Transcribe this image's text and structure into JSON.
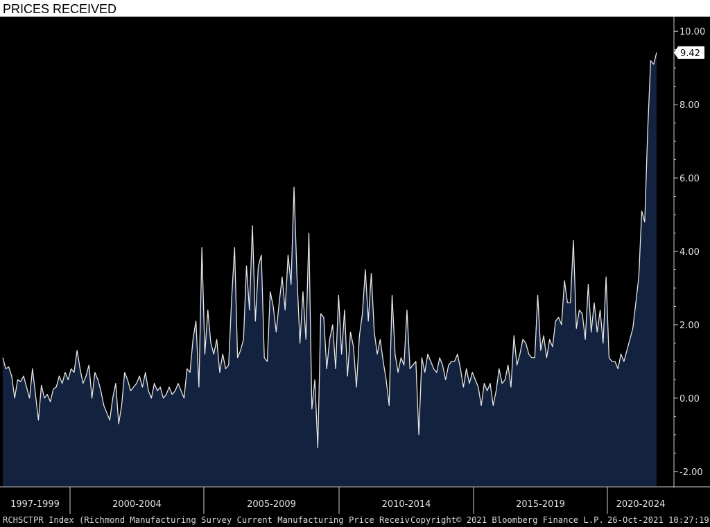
{
  "chart_data": {
    "type": "area",
    "title": "PRICES RECEIVED",
    "last_value_label": "9.42",
    "y_ticks": [
      "10.00",
      "8.00",
      "6.00",
      "4.00",
      "2.00",
      "0.00",
      "-2.00"
    ],
    "ylim": [
      -2.4,
      10.4
    ],
    "x_period_labels": [
      "1997-1999",
      "2000-2004",
      "2005-2009",
      "2010-2014",
      "2015-2019",
      "2020-2024"
    ],
    "x_start": "1997-01",
    "x_end": "2021-10",
    "grid": false,
    "colors": {
      "background": "#000000",
      "area_fill": "#12223f",
      "line": "#e6e6e6"
    },
    "series": [
      {
        "values": [
          1.1,
          0.8,
          0.85,
          0.6,
          0.0,
          0.5,
          0.45,
          0.6,
          0.3,
          0.0,
          0.8,
          0.1,
          -0.6,
          0.35,
          0.0,
          0.1,
          -0.1,
          0.25,
          0.3,
          0.6,
          0.4,
          0.7,
          0.5,
          0.8,
          0.7,
          1.3,
          0.8,
          0.4,
          0.6,
          0.9,
          0.0,
          0.7,
          0.5,
          0.2,
          -0.2,
          -0.4,
          -0.6,
          0.0,
          0.4,
          -0.7,
          -0.2,
          0.7,
          0.5,
          0.2,
          0.3,
          0.4,
          0.6,
          0.3,
          0.7,
          0.2,
          0.0,
          0.4,
          0.2,
          0.3,
          0.0,
          0.1,
          0.3,
          0.1,
          0.2,
          0.4,
          0.2,
          0.0,
          0.8,
          0.7,
          1.6,
          2.1,
          0.3,
          4.1,
          1.2,
          2.4,
          1.5,
          1.2,
          1.6,
          0.7,
          1.2,
          0.8,
          0.9,
          2.7,
          4.1,
          1.1,
          1.3,
          1.6,
          3.6,
          2.4,
          4.7,
          2.1,
          3.6,
          3.9,
          1.1,
          1.0,
          2.9,
          2.5,
          1.8,
          2.6,
          3.3,
          2.4,
          3.9,
          3.1,
          5.75,
          3.3,
          1.5,
          2.9,
          1.6,
          4.5,
          -0.3,
          0.5,
          -1.35,
          2.3,
          2.2,
          0.8,
          1.6,
          2.0,
          0.8,
          2.8,
          1.2,
          2.4,
          0.6,
          1.8,
          1.4,
          0.3,
          1.7,
          2.3,
          3.5,
          2.1,
          3.4,
          1.8,
          1.2,
          1.6,
          1.0,
          0.5,
          -0.2,
          2.8,
          1.2,
          0.7,
          1.1,
          0.9,
          2.4,
          0.8,
          0.9,
          1.0,
          -1.0,
          1.1,
          0.7,
          1.2,
          1.0,
          0.8,
          0.7,
          1.1,
          0.9,
          0.5,
          0.9,
          1.0,
          1.0,
          1.2,
          0.8,
          0.3,
          0.8,
          0.4,
          0.7,
          0.5,
          0.3,
          -0.2,
          0.4,
          0.2,
          0.4,
          -0.2,
          0.2,
          0.8,
          0.4,
          0.5,
          0.9,
          0.3,
          1.7,
          0.9,
          1.2,
          1.6,
          1.5,
          1.2,
          1.1,
          1.1,
          2.8,
          1.3,
          1.7,
          1.1,
          1.6,
          1.4,
          2.1,
          2.2,
          2.0,
          3.2,
          2.6,
          2.6,
          4.3,
          1.9,
          2.4,
          2.3,
          1.6,
          3.1,
          1.8,
          2.6,
          1.8,
          2.4,
          1.5,
          3.3,
          1.1,
          1.0,
          1.0,
          0.8,
          1.2,
          1.0,
          1.3,
          1.6,
          1.9,
          2.6,
          3.3,
          5.1,
          4.8,
          7.3,
          9.2,
          9.1,
          9.42
        ]
      }
    ]
  },
  "footer": {
    "ticker": "RCHSCTPR Index (Richmond Manufacturing Survey Current Manufacturing Price Receiv",
    "copyright": "Copyright© 2021 Bloomberg Finance L.P.",
    "timestamp": "26-Oct-2021 10:27:19"
  }
}
